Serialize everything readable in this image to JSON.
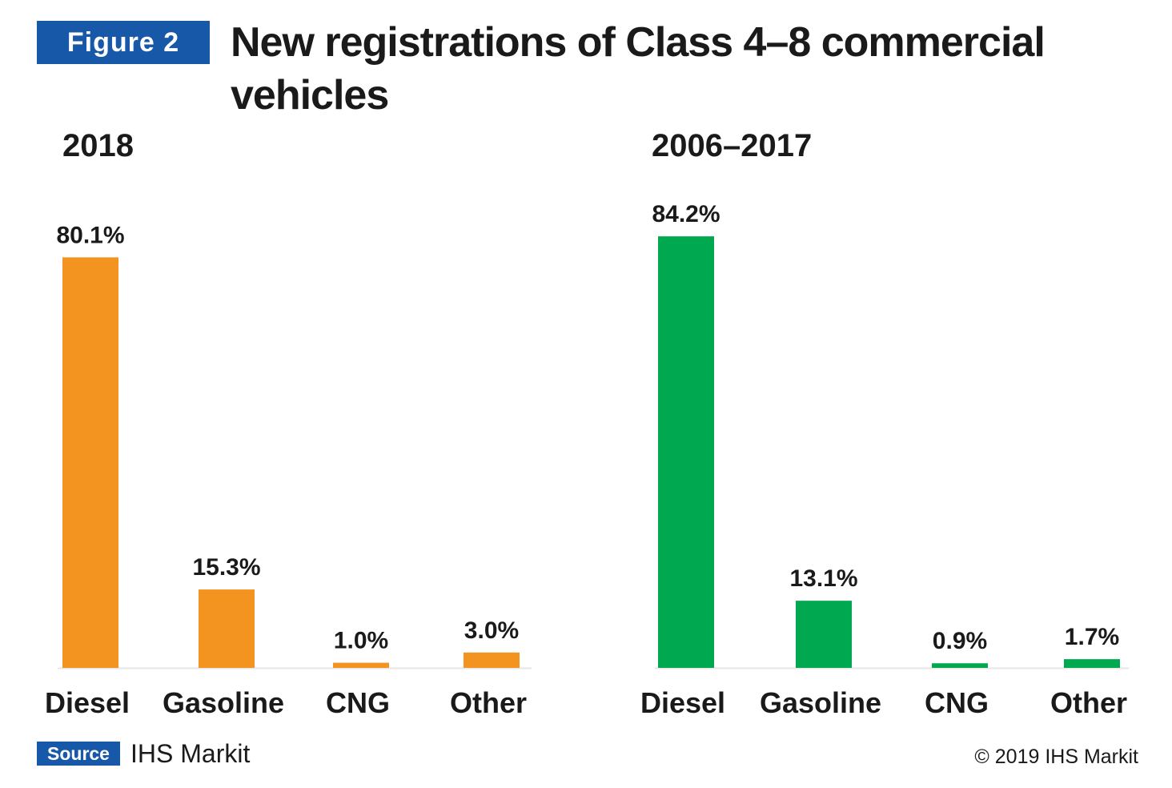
{
  "header": {
    "figure_label": "Figure 2",
    "title": "New registrations of Class 4–8 commercial vehicles"
  },
  "colors": {
    "badge": "#1858a8",
    "series_2018": "#f39420",
    "series_2006_2017": "#00a94f"
  },
  "chart_data": [
    {
      "type": "bar",
      "title": "2018",
      "categories": [
        "Diesel",
        "Gasoline",
        "CNG",
        "Other"
      ],
      "values": [
        80.1,
        15.3,
        1.0,
        3.0
      ],
      "value_labels": [
        "80.1%",
        "15.3%",
        "1.0%",
        "3.0%"
      ],
      "unit": "%",
      "color": "#f39420",
      "ylim": [
        0,
        100
      ],
      "grid": false,
      "legend": "none"
    },
    {
      "type": "bar",
      "title": "2006–2017",
      "categories": [
        "Diesel",
        "Gasoline",
        "CNG",
        "Other"
      ],
      "values": [
        84.2,
        13.1,
        0.9,
        1.7
      ],
      "value_labels": [
        "84.2%",
        "13.1%",
        "0.9%",
        "1.7%"
      ],
      "unit": "%",
      "color": "#00a94f",
      "ylim": [
        0,
        100
      ],
      "grid": false,
      "legend": "none"
    }
  ],
  "footer": {
    "source_label": "Source",
    "source_text": "IHS Markit",
    "copyright": "© 2019 IHS Markit"
  }
}
